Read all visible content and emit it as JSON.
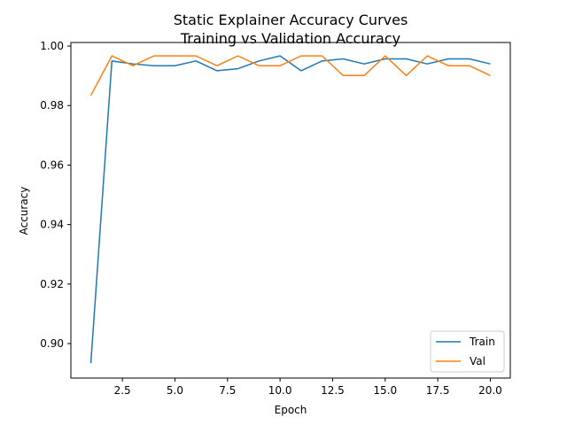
{
  "chart_data": {
    "type": "line",
    "title": "Static Explainer Accuracy Curves",
    "subtitle": "Training vs Validation Accuracy",
    "xlabel": "Epoch",
    "ylabel": "Accuracy",
    "xlim": [
      0.05,
      20.95
    ],
    "ylim": [
      0.8884,
      1.0012
    ],
    "xticks": [
      2.5,
      5.0,
      7.5,
      10.0,
      12.5,
      15.0,
      17.5,
      20.0
    ],
    "xtick_labels": [
      "2.5",
      "5.0",
      "7.5",
      "10.0",
      "12.5",
      "15.0",
      "17.5",
      "20.0"
    ],
    "yticks": [
      0.9,
      0.92,
      0.94,
      0.96,
      0.98,
      1.0
    ],
    "ytick_labels": [
      "0.90",
      "0.92",
      "0.94",
      "0.96",
      "0.98",
      "1.00"
    ],
    "grid": false,
    "legend_position": "bottom-right",
    "x": [
      1,
      2,
      3,
      4,
      5,
      6,
      7,
      8,
      9,
      10,
      11,
      12,
      13,
      14,
      15,
      16,
      17,
      18,
      19,
      20
    ],
    "series": [
      {
        "name": "Train",
        "color": "#1f77b4",
        "values": [
          0.8934,
          0.995,
          0.994,
          0.9934,
          0.9934,
          0.995,
          0.9917,
          0.9924,
          0.995,
          0.9967,
          0.9917,
          0.995,
          0.9957,
          0.994,
          0.9957,
          0.9957,
          0.994,
          0.9957,
          0.9957,
          0.994
        ]
      },
      {
        "name": "Val",
        "color": "#ff7f0e",
        "values": [
          0.9834,
          0.9967,
          0.9934,
          0.9967,
          0.9967,
          0.9967,
          0.9934,
          0.9967,
          0.9934,
          0.9934,
          0.9967,
          0.9967,
          0.9901,
          0.9901,
          0.9967,
          0.9901,
          0.9967,
          0.9934,
          0.9934,
          0.9901
        ]
      }
    ]
  }
}
